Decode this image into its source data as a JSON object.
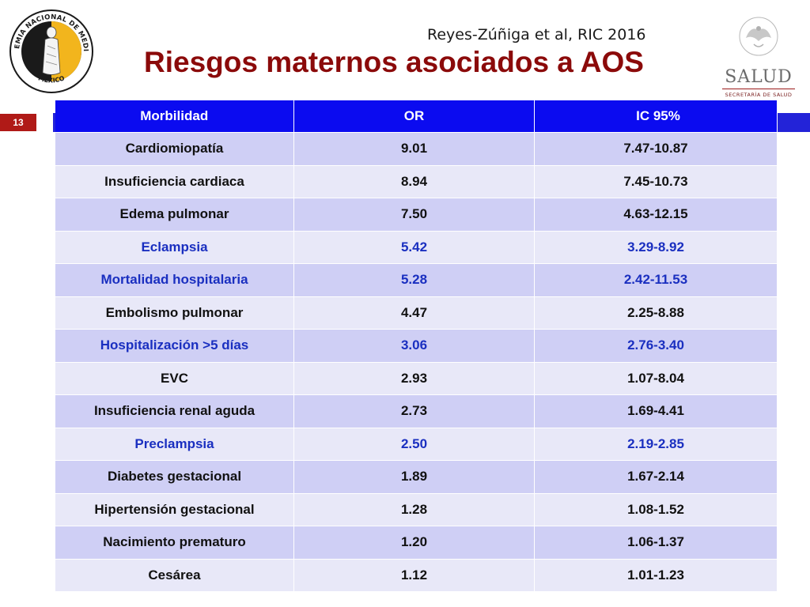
{
  "header": {
    "citation": "Reyes-Zúñiga et al, RIC 2016",
    "title": "Riesgos maternos asociados a AOS",
    "slide_number": "13"
  },
  "logos": {
    "seal_text_top": "ACADEMIA NACIONAL DE MEDICINA",
    "seal_text_bottom": "MÉXICO",
    "salud_name": "SALUD",
    "salud_subtitle": "SECRETARÍA DE SALUD"
  },
  "colors": {
    "title": "#8b0a0a",
    "header_bg": "#0b0bf0",
    "band": "#2323d8",
    "row_odd": "#cfcff5",
    "row_even": "#e8e8f8",
    "highlight_text": "#1a2fc0",
    "slide_number_bg": "#b01a17"
  },
  "table": {
    "columns": [
      "Morbilidad",
      "OR",
      "IC 95%"
    ],
    "rows": [
      {
        "morbilidad": "Cardiomiopatía",
        "or": "9.01",
        "ic": "7.47-10.87",
        "highlight": false
      },
      {
        "morbilidad": "Insuficiencia cardiaca",
        "or": "8.94",
        "ic": "7.45-10.73",
        "highlight": false
      },
      {
        "morbilidad": "Edema pulmonar",
        "or": "7.50",
        "ic": "4.63-12.15",
        "highlight": false
      },
      {
        "morbilidad": "Eclampsia",
        "or": "5.42",
        "ic": "3.29-8.92",
        "highlight": true
      },
      {
        "morbilidad": "Mortalidad hospitalaria",
        "or": "5.28",
        "ic": "2.42-11.53",
        "highlight": true
      },
      {
        "morbilidad": "Embolismo pulmonar",
        "or": "4.47",
        "ic": "2.25-8.88",
        "highlight": false
      },
      {
        "morbilidad": "Hospitalización >5 días",
        "or": "3.06",
        "ic": "2.76-3.40",
        "highlight": true
      },
      {
        "morbilidad": "EVC",
        "or": "2.93",
        "ic": "1.07-8.04",
        "highlight": false
      },
      {
        "morbilidad": "Insuficiencia renal aguda",
        "or": "2.73",
        "ic": "1.69-4.41",
        "highlight": false
      },
      {
        "morbilidad": "Preclampsia",
        "or": "2.50",
        "ic": "2.19-2.85",
        "highlight": true
      },
      {
        "morbilidad": "Diabetes gestacional",
        "or": "1.89",
        "ic": "1.67-2.14",
        "highlight": false
      },
      {
        "morbilidad": "Hipertensión gestacional",
        "or": "1.28",
        "ic": "1.08-1.52",
        "highlight": false
      },
      {
        "morbilidad": "Nacimiento prematuro",
        "or": "1.20",
        "ic": "1.06-1.37",
        "highlight": false
      },
      {
        "morbilidad": "Cesárea",
        "or": "1.12",
        "ic": "1.01-1.23",
        "highlight": false
      }
    ]
  }
}
